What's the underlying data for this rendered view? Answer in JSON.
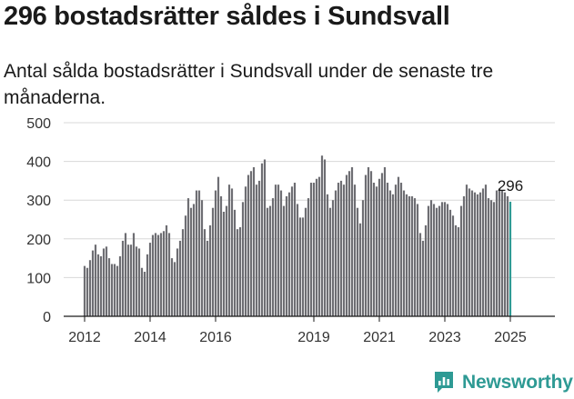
{
  "header": {
    "title": "296 bostadsrätter såldes i Sundsvall",
    "subtitle": "Antal sålda bostadsrätter i Sundsvall under de senaste tre månaderna."
  },
  "logo": {
    "text": "Newsworthy",
    "icon": "newsworthy-chat-chart-icon",
    "color": "#2e9a94"
  },
  "colors": {
    "bar": "#6e6e73",
    "highlight": "#2e9a94",
    "grid": "#d8d8d8",
    "axis": "#1a1a1a"
  },
  "chart_data": {
    "type": "bar",
    "title": "296 bostadsrätter såldes i Sundsvall",
    "subtitle": "Antal sålda bostadsrätter i Sundsvall under de senaste tre månaderna.",
    "xlabel": "",
    "ylabel": "",
    "ylim": [
      0,
      500
    ],
    "yticks": [
      0,
      100,
      200,
      300,
      400,
      500
    ],
    "x_tick_labels": [
      {
        "label": "2012",
        "month_index": 0
      },
      {
        "label": "2014",
        "month_index": 24
      },
      {
        "label": "2016",
        "month_index": 48
      },
      {
        "label": "2019",
        "month_index": 84
      },
      {
        "label": "2021",
        "month_index": 108
      },
      {
        "label": "2023",
        "month_index": 132
      },
      {
        "label": "2025",
        "month_index": 156
      }
    ],
    "grid": true,
    "legend": "none",
    "start_month": "2012-01",
    "values": [
      130,
      125,
      145,
      170,
      185,
      160,
      155,
      175,
      180,
      150,
      135,
      135,
      130,
      155,
      195,
      215,
      185,
      185,
      215,
      180,
      175,
      125,
      115,
      160,
      190,
      210,
      215,
      210,
      215,
      220,
      235,
      215,
      150,
      140,
      175,
      195,
      225,
      260,
      305,
      280,
      290,
      325,
      325,
      300,
      225,
      195,
      235,
      280,
      325,
      360,
      310,
      270,
      285,
      340,
      330,
      275,
      225,
      230,
      295,
      335,
      365,
      375,
      385,
      340,
      350,
      395,
      405,
      280,
      285,
      305,
      340,
      340,
      325,
      285,
      310,
      320,
      335,
      345,
      290,
      255,
      255,
      280,
      305,
      345,
      345,
      355,
      360,
      415,
      405,
      315,
      280,
      300,
      325,
      345,
      350,
      340,
      365,
      375,
      385,
      340,
      280,
      240,
      300,
      365,
      385,
      375,
      345,
      335,
      355,
      370,
      385,
      345,
      325,
      315,
      340,
      360,
      345,
      325,
      315,
      310,
      310,
      305,
      290,
      215,
      195,
      235,
      285,
      300,
      290,
      280,
      285,
      295,
      295,
      290,
      275,
      260,
      235,
      230,
      285,
      310,
      340,
      330,
      325,
      320,
      315,
      320,
      330,
      340,
      305,
      300,
      295,
      325,
      330,
      325,
      320,
      310,
      296
    ],
    "highlight": {
      "index": 156,
      "value": 296,
      "label": "296"
    }
  }
}
